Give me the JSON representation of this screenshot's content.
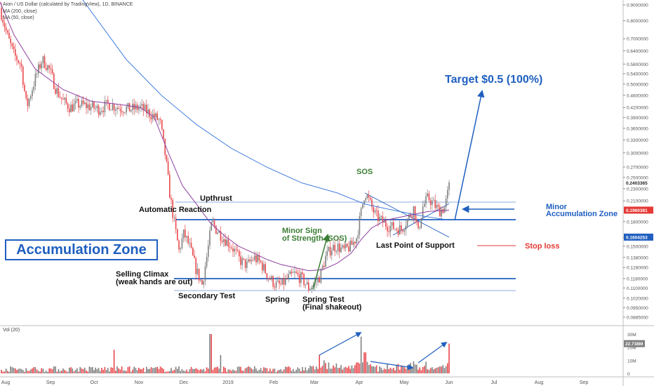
{
  "header": {
    "title": "Aion / US Dollar (calculated by TradingView), 1D, BINANCE",
    "ma200": "MA (200, close)",
    "ma50": "MA (50, close)"
  },
  "volume_pane": {
    "label": "Vol (20)",
    "last_value": "22.738M",
    "ticks": [
      "30M",
      "20M",
      "10M",
      "0"
    ]
  },
  "colors": {
    "up": "#7f7f7f",
    "down": "#e8474b",
    "ma200": "#2f6fdc",
    "ma50": "#8e3fa0",
    "annotation_blue": "#1f5fbf",
    "sos_green": "#3a7d33",
    "stop_red": "#e53935"
  },
  "chart_data": {
    "type": "candlestick",
    "title": "Aion / US Dollar (calculated by TradingView), 1D, BINANCE",
    "x_labels": [
      "Aug",
      "Sep",
      "Oct",
      "Nov",
      "Dec",
      "2019",
      "Feb",
      "Mar",
      "Apr",
      "May",
      "Jun",
      "Jul",
      "Aug",
      "Sep"
    ],
    "y_scale": "log",
    "y_ticks": [
      "0.9000000",
      "0.8000000",
      "0.7000000",
      "0.6400000",
      "0.5800000",
      "0.5400000",
      "0.5000000",
      "0.4600000",
      "0.4200000",
      "0.3900000",
      "0.3600000",
      "0.3300000",
      "0.3000000",
      "0.2700000",
      "0.2500000",
      "0.2300000",
      "0.2100000",
      "0.1800000",
      "0.1600000",
      "0.1500000",
      "0.1380000",
      "0.1280000",
      "0.1180000",
      "0.1100000",
      "0.1020000",
      "0.0950000",
      "0.0885000"
    ],
    "price_flags": [
      {
        "value": "0.2403365",
        "style": "plain"
      },
      {
        "value": "0.1960381",
        "style": "red"
      },
      {
        "value": "0.1604253",
        "style": "blue"
      }
    ],
    "series": [
      {
        "name": "MA (200, close)",
        "points": [
          [
            0,
            3.2
          ],
          [
            20,
            2.2
          ],
          [
            60,
            1.45
          ],
          [
            120,
            0.92
          ],
          [
            180,
            0.6
          ],
          [
            230,
            0.46
          ],
          [
            280,
            0.37
          ],
          [
            330,
            0.31
          ],
          [
            380,
            0.27
          ],
          [
            430,
            0.24
          ],
          [
            480,
            0.223
          ],
          [
            520,
            0.205
          ],
          [
            560,
            0.196
          ],
          [
            600,
            0.188
          ],
          [
            640,
            0.182
          ]
        ]
      },
      {
        "name": "MA (50, close)",
        "points": [
          [
            0,
            0.92
          ],
          [
            20,
            0.72
          ],
          [
            50,
            0.56
          ],
          [
            90,
            0.48
          ],
          [
            130,
            0.44
          ],
          [
            170,
            0.43
          ],
          [
            200,
            0.42
          ],
          [
            220,
            0.39
          ],
          [
            240,
            0.3
          ],
          [
            260,
            0.235
          ],
          [
            280,
            0.205
          ],
          [
            300,
            0.178
          ],
          [
            320,
            0.162
          ],
          [
            340,
            0.15
          ],
          [
            360,
            0.143
          ],
          [
            380,
            0.136
          ],
          [
            400,
            0.131
          ],
          [
            420,
            0.128
          ],
          [
            440,
            0.125
          ],
          [
            460,
            0.126
          ],
          [
            480,
            0.132
          ],
          [
            500,
            0.142
          ],
          [
            515,
            0.158
          ],
          [
            530,
            0.172
          ],
          [
            550,
            0.182
          ],
          [
            570,
            0.186
          ],
          [
            590,
            0.19
          ],
          [
            610,
            0.194
          ],
          [
            640,
            0.196
          ]
        ]
      }
    ],
    "close_path": [
      [
        0,
        0.88
      ],
      [
        10,
        0.72
      ],
      [
        20,
        0.62
      ],
      [
        30,
        0.58
      ],
      [
        38,
        0.42
      ],
      [
        50,
        0.52
      ],
      [
        60,
        0.6
      ],
      [
        70,
        0.56
      ],
      [
        80,
        0.48
      ],
      [
        90,
        0.44
      ],
      [
        100,
        0.42
      ],
      [
        110,
        0.43
      ],
      [
        125,
        0.425
      ],
      [
        140,
        0.415
      ],
      [
        155,
        0.43
      ],
      [
        170,
        0.42
      ],
      [
        185,
        0.415
      ],
      [
        200,
        0.42
      ],
      [
        215,
        0.4
      ],
      [
        228,
        0.38
      ],
      [
        236,
        0.29
      ],
      [
        242,
        0.22
      ],
      [
        248,
        0.18
      ],
      [
        255,
        0.145
      ],
      [
        262,
        0.165
      ],
      [
        270,
        0.15
      ],
      [
        280,
        0.125
      ],
      [
        288,
        0.113
      ],
      [
        295,
        0.14
      ],
      [
        302,
        0.18
      ],
      [
        308,
        0.17
      ],
      [
        318,
        0.16
      ],
      [
        330,
        0.15
      ],
      [
        342,
        0.135
      ],
      [
        352,
        0.13
      ],
      [
        362,
        0.138
      ],
      [
        372,
        0.132
      ],
      [
        382,
        0.12
      ],
      [
        392,
        0.113
      ],
      [
        400,
        0.112
      ],
      [
        410,
        0.118
      ],
      [
        420,
        0.122
      ],
      [
        430,
        0.118
      ],
      [
        440,
        0.11
      ],
      [
        448,
        0.113
      ],
      [
        456,
        0.12
      ],
      [
        464,
        0.138
      ],
      [
        472,
        0.148
      ],
      [
        480,
        0.15
      ],
      [
        490,
        0.145
      ],
      [
        500,
        0.15
      ],
      [
        508,
        0.16
      ],
      [
        515,
        0.195
      ],
      [
        520,
        0.225
      ],
      [
        526,
        0.21
      ],
      [
        534,
        0.19
      ],
      [
        542,
        0.182
      ],
      [
        552,
        0.175
      ],
      [
        562,
        0.172
      ],
      [
        572,
        0.17
      ],
      [
        582,
        0.185
      ],
      [
        590,
        0.2
      ],
      [
        596,
        0.165
      ],
      [
        602,
        0.2
      ],
      [
        610,
        0.215
      ],
      [
        618,
        0.205
      ],
      [
        626,
        0.195
      ],
      [
        634,
        0.2
      ],
      [
        641,
        0.24
      ]
    ],
    "volume_spikes": [
      [
        163,
        18
      ],
      [
        300,
        30
      ],
      [
        315,
        14
      ],
      [
        455,
        14
      ],
      [
        462,
        10
      ],
      [
        515,
        28
      ],
      [
        520,
        16
      ],
      [
        585,
        8
      ],
      [
        641,
        22.7
      ]
    ]
  },
  "annotations": {
    "accumulation_zone": "Accumulation Zone",
    "automatic_reaction": "Automatic Reaction",
    "upthrust": "Upthrust",
    "selling_climax_1": "Selling Climax",
    "selling_climax_2": "(weak hands are out)",
    "secondary_test": "Secondary Test",
    "spring": "Spring",
    "spring_test_1": "Spring Test",
    "spring_test_2": "(Final shakeout)",
    "minor_sos_1": "Minor Sign",
    "minor_sos_2": "of Strength (SOS)",
    "sos": "SOS",
    "last_point_support": "Last Point of Support",
    "target": "Target $0.5 (100%)",
    "minor_acc_1": "Minor",
    "minor_acc_2": "Accumulation Zone",
    "stop_loss": "Stop loss"
  }
}
